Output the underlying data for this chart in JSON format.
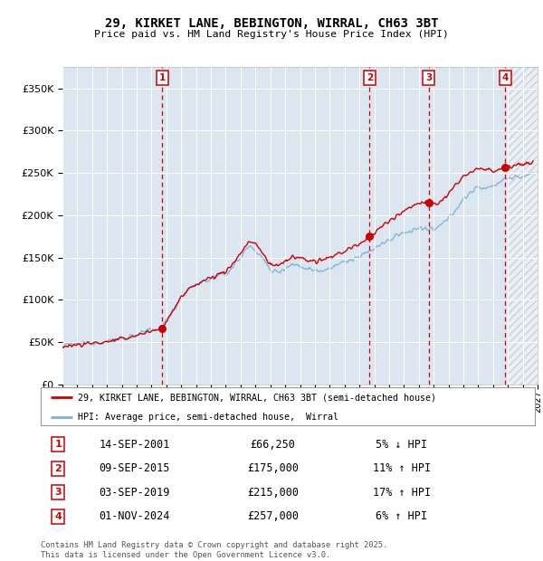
{
  "title_line1": "29, KIRKET LANE, BEBINGTON, WIRRAL, CH63 3BT",
  "title_line2": "Price paid vs. HM Land Registry's House Price Index (HPI)",
  "background_color": "#dce6f1",
  "hpi_color": "#7ab0d4",
  "price_color": "#cc0000",
  "ylim": [
    0,
    375000
  ],
  "yticks": [
    0,
    50000,
    100000,
    150000,
    200000,
    250000,
    300000,
    350000
  ],
  "transactions": [
    {
      "num": 1,
      "date": "14-SEP-2001",
      "price": 66250,
      "pct": "5%",
      "dir": "↓",
      "x_year": 2001.71
    },
    {
      "num": 2,
      "date": "09-SEP-2015",
      "price": 175000,
      "pct": "11%",
      "dir": "↑",
      "x_year": 2015.69
    },
    {
      "num": 3,
      "date": "03-SEP-2019",
      "price": 215000,
      "pct": "17%",
      "dir": "↑",
      "x_year": 2019.67
    },
    {
      "num": 4,
      "date": "01-NOV-2024",
      "price": 257000,
      "pct": "6%",
      "dir": "↑",
      "x_year": 2024.83
    }
  ],
  "legend_label1": "29, KIRKET LANE, BEBINGTON, WIRRAL, CH63 3BT (semi-detached house)",
  "legend_label2": "HPI: Average price, semi-detached house,  Wirral",
  "footer1": "Contains HM Land Registry data © Crown copyright and database right 2025.",
  "footer2": "This data is licensed under the Open Government Licence v3.0.",
  "xmin": 1995,
  "xmax": 2027,
  "hatch_start": 2025.0
}
